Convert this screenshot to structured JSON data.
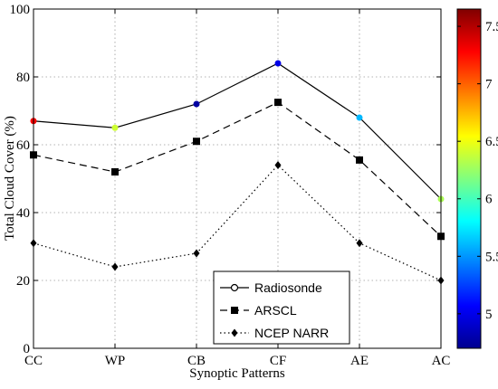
{
  "chart_data": {
    "type": "line",
    "xlabel": "Synoptic Patterns",
    "ylabel": "Total Cloud Cover (%)",
    "ylim": [
      0,
      100
    ],
    "yticks": [
      "0",
      "20",
      "40",
      "60",
      "80",
      "100"
    ],
    "grid": true,
    "legend_position": "bottom-center",
    "categories": [
      "CC",
      "WP",
      "CB",
      "CF",
      "AE",
      "AC"
    ],
    "series": [
      {
        "name": "Radiosonde",
        "values": [
          67,
          65,
          72,
          84,
          68,
          44
        ],
        "line_style": "solid",
        "marker": "circle",
        "marker_color_values": [
          7.3,
          6.4,
          4.8,
          5.0,
          5.6,
          6.3
        ]
      },
      {
        "name": "ARSCL",
        "values": [
          57,
          52,
          61,
          72.5,
          55.5,
          33
        ],
        "line_style": "dashed",
        "marker": "square"
      },
      {
        "name": "NCEP NARR",
        "values": [
          31,
          24,
          28,
          54,
          31,
          20
        ],
        "line_style": "dotted",
        "marker": "diamond"
      }
    ],
    "colorbar": {
      "colormap": "jet",
      "range": [
        4.7,
        7.65
      ],
      "ticks": [
        "5",
        "5.5",
        "6",
        "6.5",
        "7",
        "7.5"
      ]
    }
  }
}
